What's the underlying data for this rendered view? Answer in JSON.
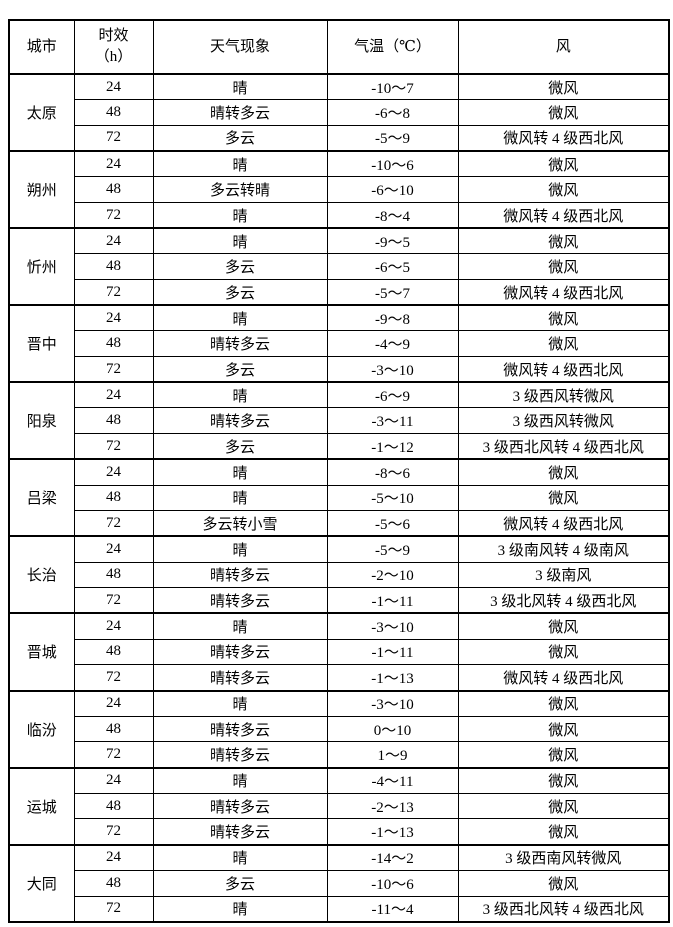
{
  "page": {
    "background_color": "#ffffff",
    "text_color": "#000000",
    "border_color": "#000000"
  },
  "table": {
    "headers": {
      "city": "城市",
      "hours_line1": "时效",
      "hours_line2": "（h）",
      "weather": "天气现象",
      "temperature": "气温（℃）",
      "wind": "风"
    },
    "cities": [
      {
        "name": "太原",
        "rows": [
          {
            "hours": "24",
            "weather": "晴",
            "temp": "-10～7",
            "wind": "微风"
          },
          {
            "hours": "48",
            "weather": "晴转多云",
            "temp": "-6～8",
            "wind": "微风"
          },
          {
            "hours": "72",
            "weather": "多云",
            "temp": "-5～9",
            "wind": "微风转 4 级西北风"
          }
        ]
      },
      {
        "name": "朔州",
        "rows": [
          {
            "hours": "24",
            "weather": "晴",
            "temp": "-10～6",
            "wind": "微风"
          },
          {
            "hours": "48",
            "weather": "多云转晴",
            "temp": "-6～10",
            "wind": "微风"
          },
          {
            "hours": "72",
            "weather": "晴",
            "temp": "-8～4",
            "wind": "微风转 4 级西北风"
          }
        ]
      },
      {
        "name": "忻州",
        "rows": [
          {
            "hours": "24",
            "weather": "晴",
            "temp": "-9～5",
            "wind": "微风"
          },
          {
            "hours": "48",
            "weather": "多云",
            "temp": "-6～5",
            "wind": "微风"
          },
          {
            "hours": "72",
            "weather": "多云",
            "temp": "-5～7",
            "wind": "微风转 4 级西北风"
          }
        ]
      },
      {
        "name": "晋中",
        "rows": [
          {
            "hours": "24",
            "weather": "晴",
            "temp": "-9～8",
            "wind": "微风"
          },
          {
            "hours": "48",
            "weather": "晴转多云",
            "temp": "-4～9",
            "wind": "微风"
          },
          {
            "hours": "72",
            "weather": "多云",
            "temp": "-3～10",
            "wind": "微风转 4 级西北风"
          }
        ]
      },
      {
        "name": "阳泉",
        "rows": [
          {
            "hours": "24",
            "weather": "晴",
            "temp": "-6～9",
            "wind": "3 级西风转微风"
          },
          {
            "hours": "48",
            "weather": "晴转多云",
            "temp": "-3～11",
            "wind": "3 级西风转微风"
          },
          {
            "hours": "72",
            "weather": "多云",
            "temp": "-1～12",
            "wind": "3 级西北风转 4 级西北风"
          }
        ]
      },
      {
        "name": "吕梁",
        "rows": [
          {
            "hours": "24",
            "weather": "晴",
            "temp": "-8～6",
            "wind": "微风"
          },
          {
            "hours": "48",
            "weather": "晴",
            "temp": "-5～10",
            "wind": "微风"
          },
          {
            "hours": "72",
            "weather": "多云转小雪",
            "temp": "-5～6",
            "wind": "微风转 4 级西北风"
          }
        ]
      },
      {
        "name": "长治",
        "rows": [
          {
            "hours": "24",
            "weather": "晴",
            "temp": "-5～9",
            "wind": "3 级南风转 4 级南风"
          },
          {
            "hours": "48",
            "weather": "晴转多云",
            "temp": "-2～10",
            "wind": "3 级南风"
          },
          {
            "hours": "72",
            "weather": "晴转多云",
            "temp": "-1～11",
            "wind": "3 级北风转 4 级西北风"
          }
        ]
      },
      {
        "name": "晋城",
        "rows": [
          {
            "hours": "24",
            "weather": "晴",
            "temp": "-3～10",
            "wind": "微风"
          },
          {
            "hours": "48",
            "weather": "晴转多云",
            "temp": "-1～11",
            "wind": "微风"
          },
          {
            "hours": "72",
            "weather": "晴转多云",
            "temp": "-1～13",
            "wind": "微风转 4 级西北风"
          }
        ]
      },
      {
        "name": "临汾",
        "rows": [
          {
            "hours": "24",
            "weather": "晴",
            "temp": "-3～10",
            "wind": "微风"
          },
          {
            "hours": "48",
            "weather": "晴转多云",
            "temp": "0～10",
            "wind": "微风"
          },
          {
            "hours": "72",
            "weather": "晴转多云",
            "temp": "1～9",
            "wind": "微风"
          }
        ]
      },
      {
        "name": "运城",
        "rows": [
          {
            "hours": "24",
            "weather": "晴",
            "temp": "-4～11",
            "wind": "微风"
          },
          {
            "hours": "48",
            "weather": "晴转多云",
            "temp": "-2～13",
            "wind": "微风"
          },
          {
            "hours": "72",
            "weather": "晴转多云",
            "temp": "-1～13",
            "wind": "微风"
          }
        ]
      },
      {
        "name": "大同",
        "rows": [
          {
            "hours": "24",
            "weather": "晴",
            "temp": "-14～2",
            "wind": "3 级西南风转微风"
          },
          {
            "hours": "48",
            "weather": "多云",
            "temp": "-10～6",
            "wind": "微风"
          },
          {
            "hours": "72",
            "weather": "晴",
            "temp": "-11～4",
            "wind": "3 级西北风转 4 级西北风"
          }
        ]
      }
    ]
  }
}
